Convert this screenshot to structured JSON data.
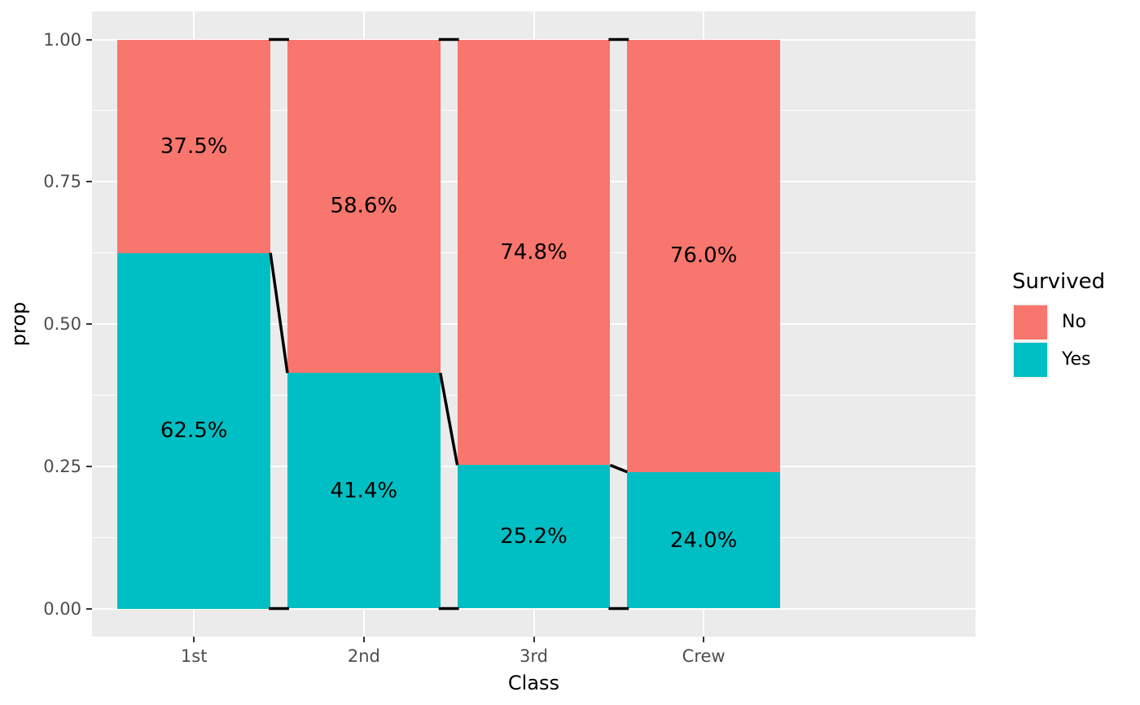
{
  "chart_data": {
    "type": "bar",
    "subtype": "stacked-proportion",
    "title": "",
    "xlabel": "Class",
    "ylabel": "prop",
    "categories": [
      "1st",
      "2nd",
      "3rd",
      "Crew"
    ],
    "series": [
      {
        "name": "No",
        "color": "#F8766D",
        "values": [
          0.375,
          0.586,
          0.748,
          0.76
        ],
        "labels": [
          "37.5%",
          "58.6%",
          "74.8%",
          "76.0%"
        ]
      },
      {
        "name": "Yes",
        "color": "#00BFC4",
        "values": [
          0.625,
          0.414,
          0.252,
          0.24
        ],
        "labels": [
          "62.5%",
          "41.4%",
          "25.2%",
          "24.0%"
        ]
      }
    ],
    "y_ticks": [
      {
        "label": "0.00",
        "value": 0.0
      },
      {
        "label": "0.25",
        "value": 0.25
      },
      {
        "label": "0.50",
        "value": 0.5
      },
      {
        "label": "0.75",
        "value": 0.75
      },
      {
        "label": "1.00",
        "value": 1.0
      }
    ],
    "y_minor_ticks": [
      0.125,
      0.375,
      0.625,
      0.875
    ],
    "ylim": [
      0,
      1
    ],
    "grid": true,
    "connectors": true,
    "connector_color": "#000000",
    "legend": {
      "title": "Survived",
      "position": "right",
      "entries": [
        {
          "label": "No",
          "color": "#F8766D"
        },
        {
          "label": "Yes",
          "color": "#00BFC4"
        }
      ]
    },
    "style": {
      "panel_background": "#EBEBEB",
      "grid_color": "#FFFFFF",
      "tick_color": "#333333",
      "tick_label_color": "#4D4D4D",
      "text_color": "#000000",
      "legend_key_background": "#F2F2F2"
    }
  }
}
